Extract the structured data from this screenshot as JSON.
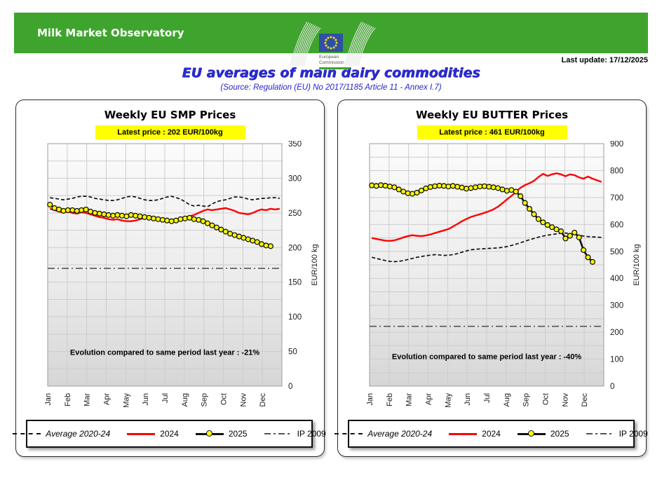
{
  "header": {
    "app_title": "Milk Market Observatory",
    "logo_caption_line1": "European",
    "logo_caption_line2": "Commission",
    "last_update": "Last update: 17/12/2025"
  },
  "page": {
    "title": "EU  averages of main dairy commodities",
    "subtitle": "(Source: Regulation (EU) No 2017/1185 Article 11 - Annex I.7)"
  },
  "colors": {
    "green": "#3FA42D",
    "title_blue": "#2B2BD5",
    "subtitle_blue": "#2424CC",
    "accent_red": "#FF0000",
    "highlight_yellow": "#FFFF00",
    "flag_blue": "#2E51A2",
    "star_yellow": "#FFD617"
  },
  "legend": {
    "avg": "Average 2020-24",
    "y2024": "2024",
    "y2025": "2025",
    "ip": "IP 2009"
  },
  "months": [
    "Jan",
    "Feb",
    "Mar",
    "Apr",
    "May",
    "Jun",
    "Jul",
    "Aug",
    "Sep",
    "Oct",
    "Nov",
    "Dec"
  ],
  "chart_data": [
    {
      "type": "line",
      "title": "Weekly EU SMP Prices",
      "latest_price_label": "Latest price : 202 EUR/100kg",
      "evolution_label": "Evolution compared to same period last year : -21%",
      "evolution_y": 45,
      "ylabel": "EUR/100 kg",
      "ylim": [
        0,
        350
      ],
      "label_step": 50,
      "grid_step": 25,
      "legend_position": "bottom",
      "grid": true,
      "series": [
        {
          "name": "Average 2020-24",
          "style": "dashed",
          "color": "#111111",
          "values": [
            272,
            271,
            270,
            269,
            270,
            271,
            273,
            274,
            274,
            273,
            271,
            270,
            269,
            268,
            268,
            269,
            271,
            273,
            274,
            273,
            271,
            269,
            268,
            268,
            269,
            271,
            273,
            274,
            272,
            270,
            266,
            262,
            260,
            261,
            260,
            259,
            263,
            266,
            268,
            269,
            271,
            273,
            273,
            272,
            270,
            269,
            270,
            271,
            271,
            272,
            272,
            271
          ]
        },
        {
          "name": "2024",
          "style": "solid",
          "color": "#FF0000",
          "values": [
            256,
            254,
            252,
            251,
            252,
            250,
            249,
            251,
            250,
            248,
            246,
            244,
            243,
            241,
            240,
            241,
            239,
            238,
            238,
            239,
            241,
            243,
            244,
            243,
            242,
            241,
            240,
            239,
            240,
            241,
            243,
            245,
            247,
            250,
            253,
            255,
            254,
            255,
            256,
            257,
            255,
            253,
            250,
            249,
            248,
            250,
            253,
            255,
            254,
            256,
            255,
            256
          ]
        },
        {
          "name": "2025",
          "style": "marker",
          "color": "#111111",
          "marker_fill": "#FFFF00",
          "values": [
            262,
            257,
            255,
            253,
            254,
            254,
            253,
            254,
            255,
            252,
            250,
            249,
            248,
            247,
            246,
            247,
            246,
            245,
            247,
            246,
            245,
            244,
            243,
            242,
            241,
            240,
            239,
            238,
            239,
            241,
            242,
            243,
            241,
            240,
            238,
            235,
            232,
            229,
            226,
            223,
            220,
            218,
            216,
            214,
            212,
            210,
            208,
            205,
            203,
            202
          ]
        },
        {
          "name": "IP 2009",
          "style": "dashdot",
          "color": "#555555",
          "value": 170
        }
      ]
    },
    {
      "type": "line",
      "title": "Weekly EU BUTTER Prices",
      "latest_price_label": "Latest price : 461 EUR/100kg",
      "evolution_label": "Evolution compared to same period last year : -40%",
      "evolution_y": 100,
      "ylabel": "EUR/100 kg",
      "ylim": [
        0,
        900
      ],
      "label_step": 100,
      "grid_step": 50,
      "legend_position": "bottom",
      "grid": true,
      "series": [
        {
          "name": "Average 2020-24",
          "style": "dashed",
          "color": "#111111",
          "values": [
            478,
            474,
            470,
            466,
            463,
            462,
            463,
            466,
            470,
            474,
            478,
            481,
            484,
            486,
            488,
            487,
            485,
            486,
            488,
            492,
            497,
            502,
            506,
            508,
            509,
            510,
            511,
            512,
            513,
            515,
            518,
            522,
            527,
            532,
            538,
            543,
            548,
            553,
            557,
            560,
            563,
            565,
            567,
            568,
            566,
            563,
            560,
            557,
            555,
            554,
            553,
            552
          ]
        },
        {
          "name": "2024",
          "style": "solid",
          "color": "#FF0000",
          "values": [
            550,
            546,
            543,
            540,
            539,
            541,
            546,
            552,
            557,
            560,
            558,
            557,
            559,
            563,
            568,
            573,
            578,
            583,
            592,
            602,
            612,
            620,
            628,
            633,
            638,
            643,
            649,
            656,
            666,
            679,
            693,
            706,
            721,
            736,
            746,
            753,
            762,
            776,
            788,
            780,
            786,
            790,
            786,
            779,
            786,
            783,
            775,
            770,
            778,
            770,
            764,
            758
          ]
        },
        {
          "name": "2025",
          "style": "marker",
          "color": "#111111",
          "marker_fill": "#FFFF00",
          "values": [
            745,
            743,
            746,
            744,
            741,
            738,
            730,
            722,
            716,
            714,
            718,
            726,
            734,
            739,
            742,
            744,
            743,
            741,
            743,
            740,
            737,
            733,
            735,
            738,
            741,
            742,
            740,
            738,
            735,
            730,
            725,
            728,
            722,
            705,
            680,
            658,
            638,
            620,
            608,
            598,
            590,
            582,
            575,
            548,
            558,
            570,
            552,
            505,
            478,
            461
          ]
        },
        {
          "name": "IP 2009",
          "style": "dashdot",
          "color": "#555555",
          "value": 222
        }
      ]
    }
  ]
}
